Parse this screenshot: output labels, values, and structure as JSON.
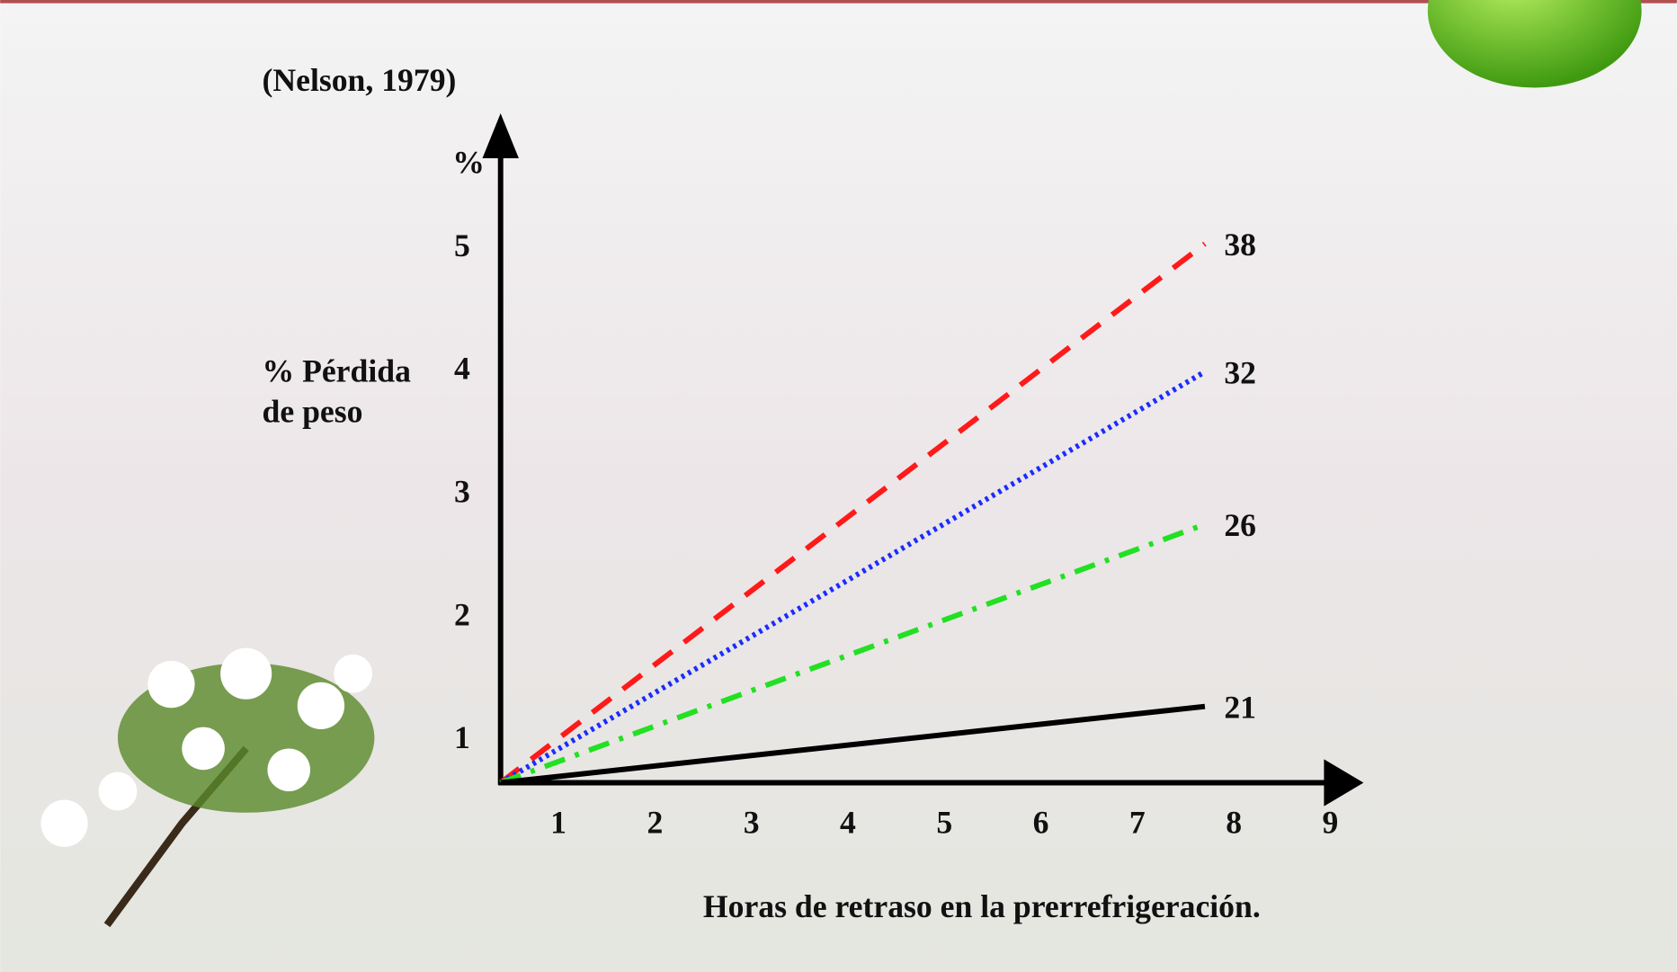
{
  "chart_data": {
    "type": "line",
    "title": "(Nelson, 1979)",
    "y_label_lines": [
      "% Pérdida",
      "de peso"
    ],
    "y_unit": "%",
    "x_label": "Horas de retraso en la prerrefrigeración.",
    "x": [
      0.4,
      7.7
    ],
    "series": [
      {
        "name": "38",
        "color": "#ff1a1a",
        "dash": "dashed",
        "values": [
          0.66,
          5.04
        ]
      },
      {
        "name": "32",
        "color": "#1a2cff",
        "dash": "dotted",
        "values": [
          0.66,
          4.0
        ]
      },
      {
        "name": "26",
        "color": "#22e022",
        "dash": "dashdot",
        "values": [
          0.66,
          2.76
        ]
      },
      {
        "name": "21",
        "color": "#000000",
        "dash": "solid",
        "values": [
          0.66,
          1.28
        ]
      }
    ],
    "xlim": [
      0.4,
      9.4
    ],
    "xticks": [
      1,
      2,
      3,
      4,
      5,
      6,
      7,
      8,
      9
    ],
    "ylim": [
      0.66,
      6.1
    ],
    "yticks": [
      1,
      2,
      3,
      4,
      5
    ]
  }
}
